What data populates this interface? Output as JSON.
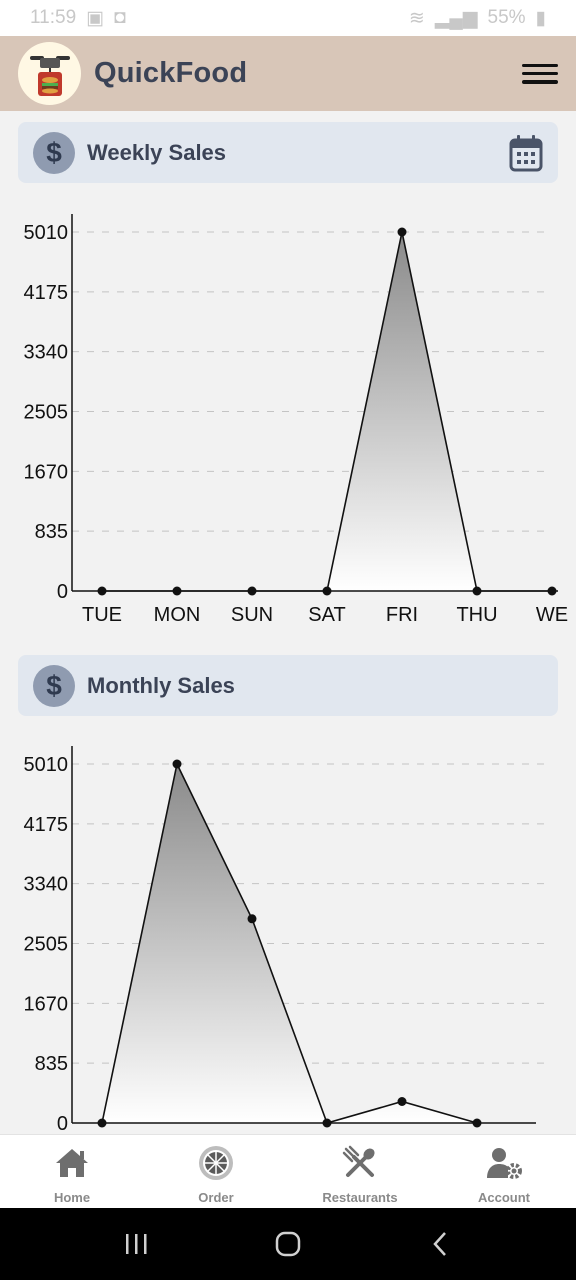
{
  "status_bar": {
    "time": "11:59",
    "battery": "55%"
  },
  "app": {
    "title": "QuickFood"
  },
  "weekly": {
    "title": "Weekly Sales"
  },
  "monthly": {
    "title": "Monthly Sales"
  },
  "nav": {
    "items": [
      {
        "label": "Home",
        "icon": "home-icon"
      },
      {
        "label": "Order",
        "icon": "order-icon"
      },
      {
        "label": "Restaurants",
        "icon": "restaurants-icon"
      },
      {
        "label": "Account",
        "icon": "account-settings-icon"
      }
    ]
  },
  "chart_data": [
    {
      "type": "area",
      "categories": [
        "TUE",
        "MON",
        "SUN",
        "SAT",
        "FRI",
        "THU",
        "WE"
      ],
      "values": [
        0,
        0,
        0,
        0,
        5010,
        0,
        0
      ],
      "yticks": [
        0,
        835,
        1670,
        2505,
        3340,
        4175,
        5010
      ],
      "ylim": [
        0,
        5010
      ],
      "grid": true
    },
    {
      "type": "area",
      "categories": [
        "",
        "",
        "",
        "",
        "",
        ""
      ],
      "values": [
        0,
        5010,
        2850,
        0,
        300,
        0
      ],
      "yticks": [
        0,
        835,
        1670,
        2505,
        3340,
        4175,
        5010
      ],
      "ylim": [
        0,
        5010
      ],
      "grid": true
    }
  ]
}
